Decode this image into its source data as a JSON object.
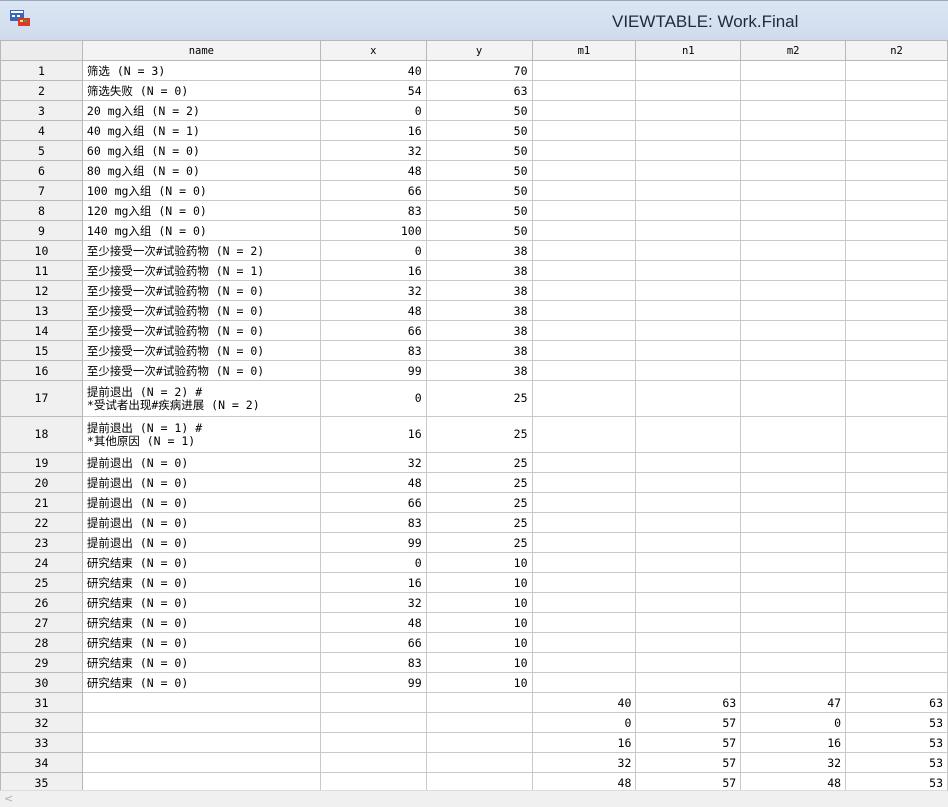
{
  "window": {
    "title": "VIEWTABLE: Work.Final",
    "icon": "sas-viewtable-icon"
  },
  "columns": [
    "name",
    "x",
    "y",
    "m1",
    "n1",
    "m2",
    "n2"
  ],
  "rows": [
    {
      "n": "1",
      "name": "筛选 (N = 3)",
      "x": "40",
      "y": "70",
      "m1": "",
      "n1": "",
      "m2": "",
      "n2": ""
    },
    {
      "n": "2",
      "name": "筛选失败 (N = 0)",
      "x": "54",
      "y": "63",
      "m1": "",
      "n1": "",
      "m2": "",
      "n2": ""
    },
    {
      "n": "3",
      "name": "20 mg入组 (N = 2)",
      "x": "0",
      "y": "50",
      "m1": "",
      "n1": "",
      "m2": "",
      "n2": ""
    },
    {
      "n": "4",
      "name": "40 mg入组 (N = 1)",
      "x": "16",
      "y": "50",
      "m1": "",
      "n1": "",
      "m2": "",
      "n2": ""
    },
    {
      "n": "5",
      "name": "60 mg入组 (N = 0)",
      "x": "32",
      "y": "50",
      "m1": "",
      "n1": "",
      "m2": "",
      "n2": ""
    },
    {
      "n": "6",
      "name": "80 mg入组 (N = 0)",
      "x": "48",
      "y": "50",
      "m1": "",
      "n1": "",
      "m2": "",
      "n2": ""
    },
    {
      "n": "7",
      "name": "100 mg入组 (N = 0)",
      "x": "66",
      "y": "50",
      "m1": "",
      "n1": "",
      "m2": "",
      "n2": ""
    },
    {
      "n": "8",
      "name": "120 mg入组 (N = 0)",
      "x": "83",
      "y": "50",
      "m1": "",
      "n1": "",
      "m2": "",
      "n2": ""
    },
    {
      "n": "9",
      "name": "140 mg入组 (N = 0)",
      "x": "100",
      "y": "50",
      "m1": "",
      "n1": "",
      "m2": "",
      "n2": ""
    },
    {
      "n": "10",
      "name": "至少接受一次#试验药物 (N = 2)",
      "x": "0",
      "y": "38",
      "m1": "",
      "n1": "",
      "m2": "",
      "n2": ""
    },
    {
      "n": "11",
      "name": "至少接受一次#试验药物 (N = 1)",
      "x": "16",
      "y": "38",
      "m1": "",
      "n1": "",
      "m2": "",
      "n2": ""
    },
    {
      "n": "12",
      "name": "至少接受一次#试验药物 (N = 0)",
      "x": "32",
      "y": "38",
      "m1": "",
      "n1": "",
      "m2": "",
      "n2": ""
    },
    {
      "n": "13",
      "name": "至少接受一次#试验药物 (N = 0)",
      "x": "48",
      "y": "38",
      "m1": "",
      "n1": "",
      "m2": "",
      "n2": ""
    },
    {
      "n": "14",
      "name": "至少接受一次#试验药物 (N = 0)",
      "x": "66",
      "y": "38",
      "m1": "",
      "n1": "",
      "m2": "",
      "n2": ""
    },
    {
      "n": "15",
      "name": "至少接受一次#试验药物 (N = 0)",
      "x": "83",
      "y": "38",
      "m1": "",
      "n1": "",
      "m2": "",
      "n2": ""
    },
    {
      "n": "16",
      "name": "至少接受一次#试验药物 (N = 0)",
      "x": "99",
      "y": "38",
      "m1": "",
      "n1": "",
      "m2": "",
      "n2": ""
    },
    {
      "n": "17",
      "name": "提前退出 (N = 2) #\n*受试者出现#疾病进展 (N = 2)",
      "x": "0",
      "y": "25",
      "m1": "",
      "n1": "",
      "m2": "",
      "n2": "",
      "tall": true
    },
    {
      "n": "18",
      "name": "提前退出 (N = 1) #\n*其他原因 (N = 1)",
      "x": "16",
      "y": "25",
      "m1": "",
      "n1": "",
      "m2": "",
      "n2": "",
      "tall": true
    },
    {
      "n": "19",
      "name": "提前退出 (N = 0)",
      "x": "32",
      "y": "25",
      "m1": "",
      "n1": "",
      "m2": "",
      "n2": ""
    },
    {
      "n": "20",
      "name": "提前退出 (N = 0)",
      "x": "48",
      "y": "25",
      "m1": "",
      "n1": "",
      "m2": "",
      "n2": ""
    },
    {
      "n": "21",
      "name": "提前退出 (N = 0)",
      "x": "66",
      "y": "25",
      "m1": "",
      "n1": "",
      "m2": "",
      "n2": ""
    },
    {
      "n": "22",
      "name": "提前退出 (N = 0)",
      "x": "83",
      "y": "25",
      "m1": "",
      "n1": "",
      "m2": "",
      "n2": ""
    },
    {
      "n": "23",
      "name": "提前退出 (N = 0)",
      "x": "99",
      "y": "25",
      "m1": "",
      "n1": "",
      "m2": "",
      "n2": ""
    },
    {
      "n": "24",
      "name": "研究结束 (N = 0)",
      "x": "0",
      "y": "10",
      "m1": "",
      "n1": "",
      "m2": "",
      "n2": ""
    },
    {
      "n": "25",
      "name": "研究结束 (N = 0)",
      "x": "16",
      "y": "10",
      "m1": "",
      "n1": "",
      "m2": "",
      "n2": ""
    },
    {
      "n": "26",
      "name": "研究结束 (N = 0)",
      "x": "32",
      "y": "10",
      "m1": "",
      "n1": "",
      "m2": "",
      "n2": ""
    },
    {
      "n": "27",
      "name": "研究结束 (N = 0)",
      "x": "48",
      "y": "10",
      "m1": "",
      "n1": "",
      "m2": "",
      "n2": ""
    },
    {
      "n": "28",
      "name": "研究结束 (N = 0)",
      "x": "66",
      "y": "10",
      "m1": "",
      "n1": "",
      "m2": "",
      "n2": ""
    },
    {
      "n": "29",
      "name": "研究结束 (N = 0)",
      "x": "83",
      "y": "10",
      "m1": "",
      "n1": "",
      "m2": "",
      "n2": ""
    },
    {
      "n": "30",
      "name": "研究结束 (N = 0)",
      "x": "99",
      "y": "10",
      "m1": "",
      "n1": "",
      "m2": "",
      "n2": ""
    },
    {
      "n": "31",
      "name": "",
      "x": "",
      "y": "",
      "m1": "40",
      "n1": "63",
      "m2": "47",
      "n2": "63"
    },
    {
      "n": "32",
      "name": "",
      "x": "",
      "y": "",
      "m1": "0",
      "n1": "57",
      "m2": "0",
      "n2": "53"
    },
    {
      "n": "33",
      "name": "",
      "x": "",
      "y": "",
      "m1": "16",
      "n1": "57",
      "m2": "16",
      "n2": "53"
    },
    {
      "n": "34",
      "name": "",
      "x": "",
      "y": "",
      "m1": "32",
      "n1": "57",
      "m2": "32",
      "n2": "53"
    },
    {
      "n": "35",
      "name": "",
      "x": "",
      "y": "",
      "m1": "48",
      "n1": "57",
      "m2": "48",
      "n2": "53"
    }
  ],
  "scrollbar": {
    "left_arrow": "<"
  }
}
